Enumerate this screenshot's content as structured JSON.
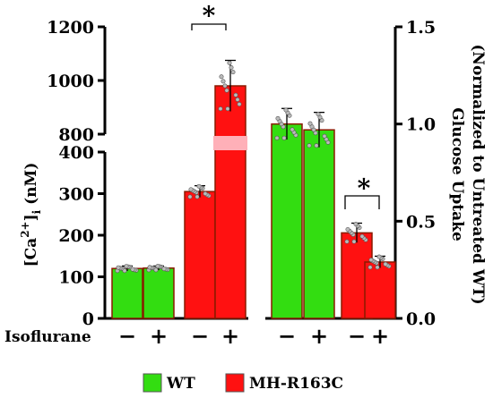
{
  "chart_data": {
    "type": "bar",
    "categories": [
      "WT −",
      "WT +",
      "MH-R163C −",
      "MH-R163C +",
      "WT −",
      "WT +",
      "MH-R163C −",
      "MH-R163C +"
    ],
    "left_panel": {
      "ylabel_prefix": "[Ca",
      "ylabel_sup": "2+",
      "ylabel_close": "]",
      "ylabel_sub": "i",
      "ylabel_unit": " (nM)",
      "lower_ticks": [
        "0",
        "100",
        "200",
        "300",
        "400"
      ],
      "upper_ticks": [
        "800",
        "1000",
        "1200"
      ],
      "lower_range": [
        0,
        400
      ],
      "upper_range": [
        800,
        1200
      ],
      "values": [
        120,
        121,
        305,
        980
      ],
      "errors": [
        6,
        5,
        14,
        95
      ],
      "groups": [
        "WT",
        "WT",
        "MH-R163C",
        "MH-R163C"
      ],
      "treatment": [
        "−",
        "+",
        "−",
        "+"
      ]
    },
    "right_panel": {
      "ylabel_line1": "Glucose Uptake",
      "ylabel_line2": "(Normalized to Untreated WT)",
      "ticks": [
        "0.0",
        "0.5",
        "1.0",
        "1.5"
      ],
      "ylim": [
        0,
        1.5
      ],
      "values": [
        1.0,
        0.97,
        0.44,
        0.29
      ],
      "errors": [
        0.08,
        0.09,
        0.05,
        0.03
      ],
      "groups": [
        "WT",
        "WT",
        "MH-R163C",
        "MH-R163C"
      ],
      "treatment": [
        "−",
        "+",
        "−",
        "+"
      ]
    },
    "significance": [
      "*",
      "*"
    ],
    "xlabel": "Isoflurane",
    "legend": {
      "position": "bottom",
      "items": [
        {
          "name": "WT",
          "color": "#33dd11"
        },
        {
          "name": "MH-R163C",
          "color": "#ff1111"
        }
      ]
    },
    "colors": {
      "WT": "#33dd11",
      "MH-R163C": "#ff1111",
      "edge": "#8a1a00"
    }
  }
}
